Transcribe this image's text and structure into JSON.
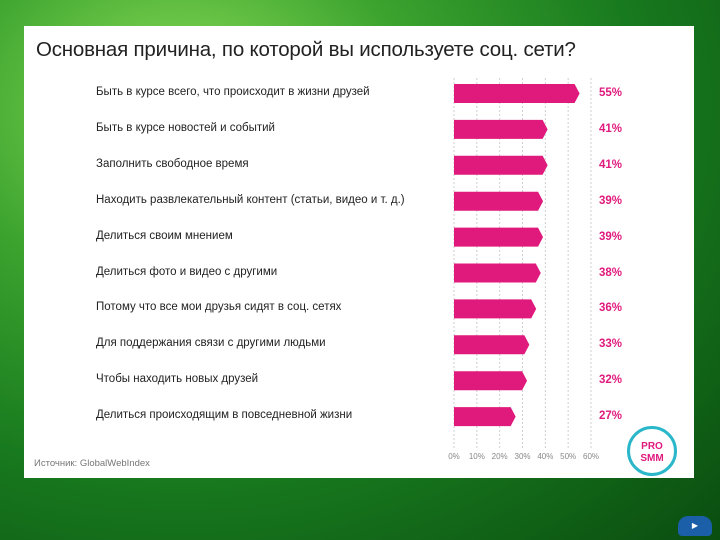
{
  "chart_data": {
    "type": "bar",
    "title": "Основная причина, по которой вы используете соц. сети?",
    "categories": [
      "Быть в курсе всего, что происходит в жизни друзей",
      "Быть в курсе новостей и событий",
      "Заполнить свободное время",
      "Находить развлекательный контент (статьи, видео и т. д.)",
      "Делиться своим мнением",
      "Делиться фото и видео с другими",
      "Потому что все мои друзья сидят в соц. сетях",
      "Для поддержания связи с другими людьми",
      "Чтобы находить новых друзей",
      "Делиться происходящим в повседневной жизни"
    ],
    "values": [
      55,
      41,
      41,
      39,
      39,
      38,
      36,
      33,
      32,
      27
    ],
    "value_labels": [
      "55%",
      "41%",
      "41%",
      "39%",
      "39%",
      "38%",
      "36%",
      "33%",
      "32%",
      "27%"
    ],
    "xlim": [
      0,
      60
    ],
    "ticks": [
      "0%",
      "10%",
      "20%",
      "30%",
      "40%",
      "50%",
      "60%"
    ],
    "orientation": "horizontal",
    "grid": true,
    "bar_color": "#e0197d",
    "source": "Источник: GlobalWebIndex"
  },
  "logo": {
    "line1": "PRO",
    "line2": "SMM"
  }
}
